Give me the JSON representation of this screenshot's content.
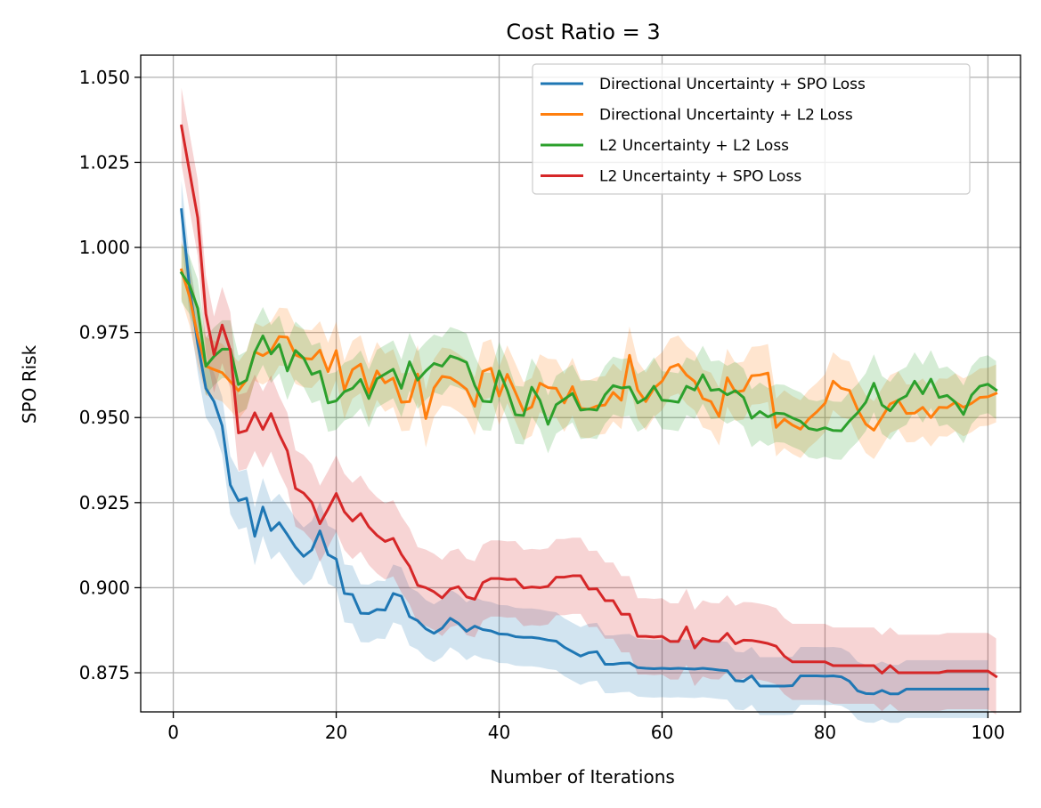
{
  "chart_data": {
    "type": "line",
    "title": "Cost Ratio = 3",
    "xlabel": "Number of Iterations",
    "ylabel": "SPO Risk",
    "xlim": [
      -4,
      104
    ],
    "ylim": [
      0.8635,
      1.0565
    ],
    "x_ticks": [
      0,
      20,
      40,
      60,
      80,
      100
    ],
    "x_tick_labels": [
      "0",
      "20",
      "40",
      "60",
      "80",
      "100"
    ],
    "y_ticks": [
      0.875,
      0.9,
      0.925,
      0.95,
      0.975,
      1.0,
      1.025,
      1.05
    ],
    "y_tick_labels": [
      "0.875",
      "0.900",
      "0.925",
      "0.950",
      "0.975",
      "1.000",
      "1.025",
      "1.050"
    ],
    "grid": true,
    "legend_position": "top-right",
    "x_start": 1,
    "x_step": 1,
    "series": [
      {
        "name": "Directional Uncertainty + SPO Loss",
        "color": "#1f77b4",
        "band_halfwidth": 0.0085,
        "values": [
          1.0111,
          0.9882,
          0.9717,
          0.9586,
          0.9547,
          0.9476,
          0.9302,
          0.9256,
          0.9263,
          0.9151,
          0.9237,
          0.9168,
          0.9191,
          0.9156,
          0.9119,
          0.9092,
          0.9111,
          0.9167,
          0.9097,
          0.9084,
          0.8983,
          0.898,
          0.8925,
          0.8924,
          0.8936,
          0.8934,
          0.8983,
          0.8975,
          0.8915,
          0.8903,
          0.8879,
          0.8866,
          0.8881,
          0.891,
          0.8895,
          0.8872,
          0.8887,
          0.8877,
          0.8873,
          0.8864,
          0.8863,
          0.8856,
          0.8854,
          0.8854,
          0.8851,
          0.8846,
          0.8843,
          0.8825,
          0.8812,
          0.8799,
          0.8809,
          0.8812,
          0.8775,
          0.8775,
          0.8778,
          0.8779,
          0.8765,
          0.8763,
          0.8762,
          0.8763,
          0.8762,
          0.8763,
          0.8762,
          0.8761,
          0.8763,
          0.8761,
          0.8758,
          0.8756,
          0.8727,
          0.8725,
          0.8741,
          0.8711,
          0.8711,
          0.8711,
          0.8711,
          0.8712,
          0.8741,
          0.8741,
          0.8741,
          0.874,
          0.8741,
          0.8738,
          0.8725,
          0.8697,
          0.8689,
          0.8688,
          0.8698,
          0.8688,
          0.8688,
          0.8702,
          0.8702,
          0.8702,
          0.8702,
          0.8702,
          0.8702,
          0.8702,
          0.8702,
          0.8702,
          0.8702,
          0.8702
        ]
      },
      {
        "name": "Directional Uncertainty + L2 Loss",
        "color": "#ff7f0e",
        "band_halfwidth": 0.0085,
        "values": [
          0.9934,
          0.9855,
          0.9739,
          0.9651,
          0.9641,
          0.9632,
          0.9606,
          0.9579,
          0.9611,
          0.9693,
          0.9682,
          0.9697,
          0.9738,
          0.9736,
          0.9684,
          0.9674,
          0.9672,
          0.9698,
          0.9635,
          0.9697,
          0.9581,
          0.9641,
          0.9657,
          0.9573,
          0.9637,
          0.9602,
          0.9616,
          0.9545,
          0.9547,
          0.9628,
          0.9497,
          0.9587,
          0.9621,
          0.9617,
          0.9602,
          0.9583,
          0.9533,
          0.9636,
          0.9645,
          0.9563,
          0.9627,
          0.9574,
          0.9519,
          0.9531,
          0.9601,
          0.9588,
          0.9586,
          0.9543,
          0.9591,
          0.9527,
          0.9524,
          0.9534,
          0.9537,
          0.9574,
          0.9551,
          0.9683,
          0.9581,
          0.9547,
          0.9586,
          0.9607,
          0.9647,
          0.9656,
          0.9625,
          0.9606,
          0.9556,
          0.9547,
          0.9503,
          0.9617,
          0.9575,
          0.9579,
          0.9623,
          0.9625,
          0.9631,
          0.9471,
          0.9495,
          0.9478,
          0.9466,
          0.9496,
          0.9517,
          0.9542,
          0.9607,
          0.9586,
          0.958,
          0.9524,
          0.9481,
          0.9463,
          0.9501,
          0.954,
          0.9551,
          0.9512,
          0.9513,
          0.953,
          0.95,
          0.953,
          0.9529,
          0.9545,
          0.953,
          0.9542,
          0.9559,
          0.9561,
          0.9571
        ]
      },
      {
        "name": "L2 Uncertainty + L2 Loss",
        "color": "#2ca02c",
        "band_halfwidth": 0.0085,
        "values": [
          0.9925,
          0.9889,
          0.9821,
          0.9651,
          0.968,
          0.9701,
          0.9701,
          0.9597,
          0.961,
          0.9692,
          0.974,
          0.9687,
          0.9715,
          0.9637,
          0.9697,
          0.9675,
          0.9627,
          0.9636,
          0.9543,
          0.9549,
          0.9576,
          0.9586,
          0.9612,
          0.9556,
          0.9614,
          0.9628,
          0.9642,
          0.9586,
          0.9664,
          0.961,
          0.9637,
          0.9659,
          0.9651,
          0.9681,
          0.9673,
          0.9662,
          0.9595,
          0.9548,
          0.9546,
          0.9637,
          0.958,
          0.9508,
          0.9506,
          0.9589,
          0.9551,
          0.948,
          0.9538,
          0.9554,
          0.9571,
          0.9522,
          0.9525,
          0.9522,
          0.9567,
          0.9594,
          0.9587,
          0.959,
          0.9543,
          0.9557,
          0.9592,
          0.9551,
          0.9549,
          0.9545,
          0.9592,
          0.9581,
          0.9626,
          0.958,
          0.9583,
          0.9567,
          0.9579,
          0.9559,
          0.9498,
          0.9518,
          0.9502,
          0.9513,
          0.9511,
          0.9499,
          0.9489,
          0.9468,
          0.9463,
          0.947,
          0.9462,
          0.9461,
          0.949,
          0.9514,
          0.9545,
          0.9601,
          0.9537,
          0.952,
          0.9551,
          0.9564,
          0.9607,
          0.957,
          0.9613,
          0.9559,
          0.9565,
          0.9545,
          0.9509,
          0.9566,
          0.9592,
          0.9598,
          0.9581
        ]
      },
      {
        "name": "L2 Uncertainty + SPO Loss",
        "color": "#d62728",
        "band_halfwidth": 0.0112,
        "values": [
          1.0357,
          1.0222,
          1.0087,
          0.9805,
          0.9685,
          0.9772,
          0.9698,
          0.9455,
          0.9462,
          0.9514,
          0.9465,
          0.9512,
          0.9451,
          0.9402,
          0.9292,
          0.9278,
          0.9251,
          0.9188,
          0.9231,
          0.9277,
          0.9223,
          0.9196,
          0.9218,
          0.9179,
          0.9154,
          0.9136,
          0.9145,
          0.9098,
          0.9063,
          0.9007,
          0.9,
          0.8988,
          0.897,
          0.8996,
          0.9003,
          0.8973,
          0.8966,
          0.9015,
          0.9027,
          0.9027,
          0.9024,
          0.9025,
          0.8999,
          0.9002,
          0.9,
          0.9004,
          0.9031,
          0.9031,
          0.9035,
          0.9035,
          0.8996,
          0.8997,
          0.8962,
          0.8962,
          0.8922,
          0.8922,
          0.8857,
          0.8857,
          0.8855,
          0.8857,
          0.8842,
          0.8842,
          0.8885,
          0.8823,
          0.8851,
          0.8843,
          0.8842,
          0.8866,
          0.8835,
          0.8846,
          0.8845,
          0.8841,
          0.8836,
          0.8828,
          0.8799,
          0.8782,
          0.8782,
          0.8782,
          0.8782,
          0.8782,
          0.8771,
          0.8771,
          0.8771,
          0.8771,
          0.8771,
          0.8771,
          0.8749,
          0.8771,
          0.875,
          0.875,
          0.875,
          0.875,
          0.875,
          0.875,
          0.8755,
          0.8755,
          0.8755,
          0.8755,
          0.8755,
          0.8755,
          0.8739
        ]
      }
    ]
  }
}
